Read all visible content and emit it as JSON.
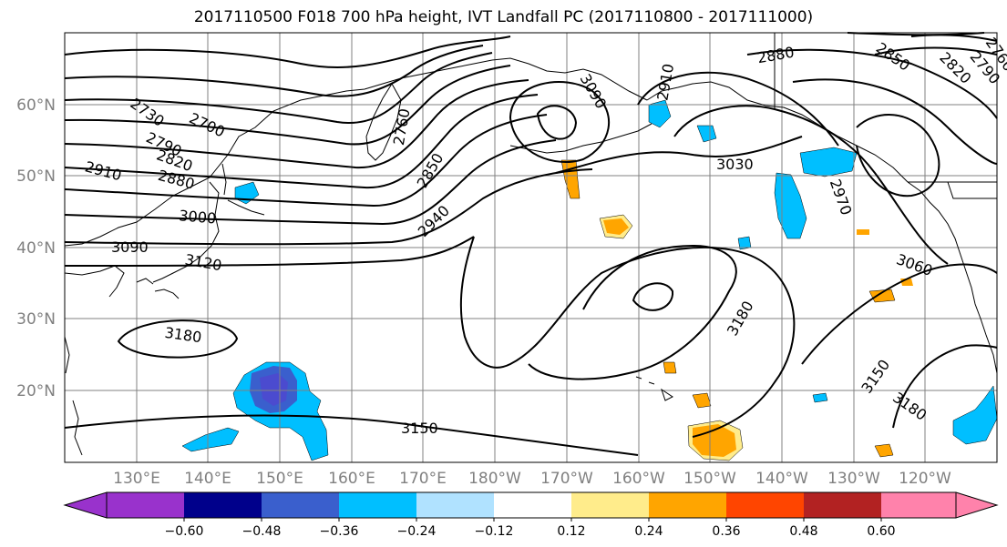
{
  "title": "2017110500 F018 700 hPa height, IVT Landfall PC (2017110800 - 2017111000)",
  "lat_labels": [
    "60°N",
    "50°N",
    "40°N",
    "30°N",
    "20°N"
  ],
  "lon_labels": [
    "130°E",
    "140°E",
    "150°E",
    "160°E",
    "170°E",
    "180°W",
    "170°W",
    "160°W",
    "150°W",
    "140°W",
    "130°W",
    "120°W"
  ],
  "contour_labels": [
    "2730",
    "2700",
    "2790",
    "2820",
    "2910",
    "2880",
    "3000",
    "3090",
    "3120",
    "3180",
    "3150",
    "2760",
    "2850",
    "2940",
    "3090",
    "3030",
    "2880",
    "2850",
    "2820",
    "2790",
    "2760",
    "2970",
    "3060",
    "3180",
    "3150",
    "3180",
    "2910"
  ],
  "colorbar": {
    "colors": [
      "#9932cc",
      "#00008b",
      "#3a5fcd",
      "#00bfff",
      "#b0e2ff",
      "#ffffff",
      "#ffec8b",
      "#ffa500",
      "#ff4500",
      "#b22222",
      "#ff82ab"
    ],
    "tick_labels": [
      "−0.60",
      "−0.48",
      "−0.36",
      "−0.24",
      "−0.12",
      "0.12",
      "0.24",
      "0.36",
      "0.48",
      "0.60"
    ]
  },
  "colors": {
    "contour": "#000000",
    "grid": "#808080",
    "coast": "#000000",
    "axis_label": "#808080"
  }
}
